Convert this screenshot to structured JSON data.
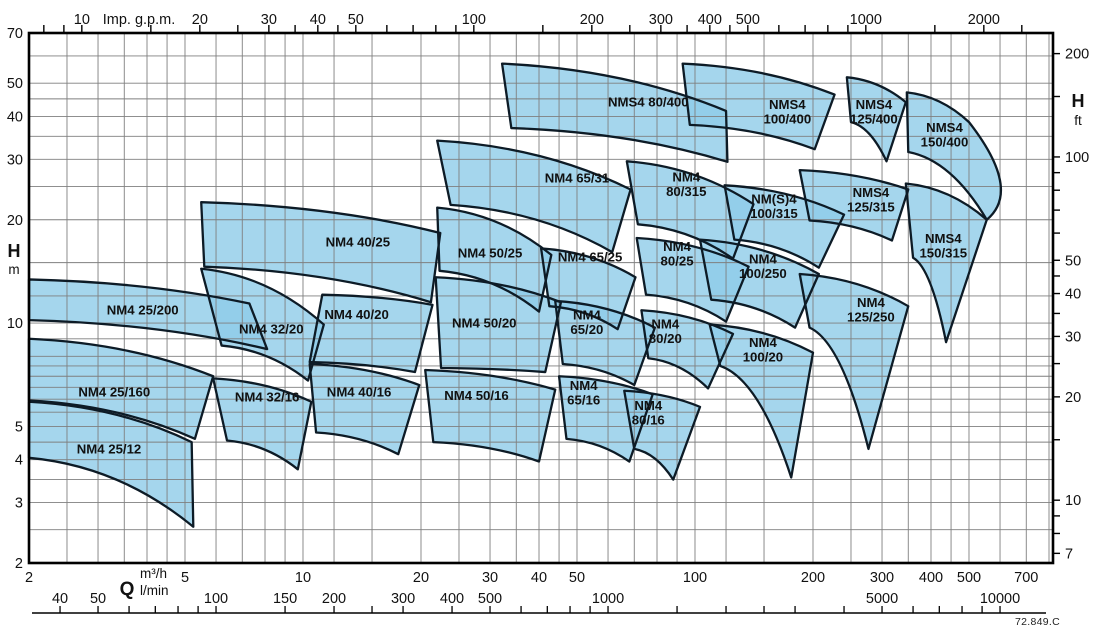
{
  "figure_code": "72.849.C",
  "colors": {
    "region_fill": "#8fcce9",
    "region_stroke": "#0d1b26",
    "grid": "#7f7f7f",
    "axis_border": "#000000",
    "text": "#111111",
    "background": "#ffffff"
  },
  "chart_data": {
    "type": "area",
    "description": "Pump range selection chart: coverage regions of pump models on log-log axes, head H versus flow Q",
    "x_range_m3h": [
      2,
      819
    ],
    "y_range_m": [
      2,
      70
    ],
    "grid": {
      "x_m3h": [
        2,
        2.5,
        3,
        3.5,
        4,
        4.5,
        5,
        6,
        7,
        8,
        9,
        10,
        12,
        15,
        20,
        25,
        30,
        35,
        40,
        45,
        50,
        60,
        70,
        80,
        90,
        100,
        120,
        150,
        200,
        250,
        300,
        350,
        400,
        450,
        500,
        600,
        700,
        800
      ],
      "y_m": [
        2,
        2.5,
        3,
        3.5,
        4,
        4.5,
        5,
        5.5,
        6,
        6.5,
        7,
        7.5,
        8,
        9,
        10,
        12,
        15,
        20,
        25,
        30,
        35,
        40,
        45,
        50,
        60,
        70
      ]
    },
    "axes": {
      "top": {
        "title": "Imp. g.p.m.",
        "labeled_ticks": [
          10,
          20,
          30,
          40,
          50,
          100,
          200,
          300,
          400,
          500,
          1000,
          2000
        ],
        "minor_ticks": [
          8,
          9,
          15,
          25,
          35,
          45,
          60,
          70,
          80,
          90,
          150,
          250,
          350,
          450,
          600,
          700,
          800,
          900,
          1500,
          2500
        ],
        "m3h_per_unit": 0.27276
      },
      "left": {
        "title": "H",
        "unit": "m",
        "labeled_ticks": [
          70,
          50,
          40,
          30,
          20,
          10,
          5,
          4,
          3,
          2
        ]
      },
      "right": {
        "title": "H",
        "unit": "ft",
        "labeled_ticks": [
          200,
          100,
          50,
          40,
          30,
          20,
          10,
          7
        ],
        "minor_ticks": [
          8,
          9,
          15,
          25,
          35,
          45,
          60,
          70,
          80,
          90,
          150
        ],
        "m_per_unit": 0.3048
      },
      "bottom_m3h": {
        "title": "Q",
        "unit": "m³/h",
        "labeled_ticks": [
          2,
          5,
          10,
          20,
          30,
          40,
          50,
          100,
          200,
          300,
          400,
          500,
          700
        ]
      },
      "bottom_lmin": {
        "unit": "l/min",
        "labeled_ticks": [
          40,
          50,
          100,
          150,
          200,
          300,
          400,
          500,
          1000,
          5000,
          10000
        ],
        "minor_ticks": [
          60,
          70,
          80,
          90,
          250,
          600,
          700,
          800,
          900,
          1500,
          2000,
          2500,
          3000,
          4000,
          6000,
          7000,
          8000,
          9000
        ],
        "m3h_per_unit": 0.06
      }
    },
    "regions": [
      {
        "name": "NM4 25/12",
        "lines": [
          "NM4 25/12"
        ],
        "label_at": [
          3.2,
          4.3
        ],
        "tl": [
          2,
          5.9
        ],
        "tr": [
          5.2,
          4.5
        ],
        "br": [
          5.25,
          2.55
        ],
        "bl": [
          2,
          4.05
        ]
      },
      {
        "name": "NM4 25/160",
        "lines": [
          "NM4 25/160"
        ],
        "label_at": [
          3.3,
          6.3
        ],
        "tl": [
          2,
          9.0
        ],
        "tr": [
          5.9,
          7.0
        ],
        "br": [
          5.3,
          4.6
        ],
        "bl": [
          2,
          5.95
        ]
      },
      {
        "name": "NM4 25/200",
        "lines": [
          "NM4 25/200"
        ],
        "label_at": [
          3.9,
          10.9
        ],
        "tl": [
          2,
          13.4
        ],
        "tr": [
          7.3,
          11.4
        ],
        "br": [
          8.1,
          8.4
        ],
        "bl": [
          2,
          10.2
        ]
      },
      {
        "name": "NM4 32/16",
        "lines": [
          "NM4 32/16"
        ],
        "label_at": [
          8.1,
          6.1
        ],
        "tl": [
          5.9,
          6.9
        ],
        "tr": [
          10.5,
          5.9
        ],
        "br": [
          9.7,
          3.75
        ],
        "bl": [
          6.4,
          4.55
        ]
      },
      {
        "name": "NM4 32/20",
        "lines": [
          "NM4 32/20"
        ],
        "label_at": [
          8.3,
          9.6
        ],
        "tl": [
          5.5,
          14.4
        ],
        "tr": [
          11.3,
          9.9
        ],
        "br": [
          10.3,
          6.8
        ],
        "bl": [
          6.2,
          8.6
        ]
      },
      {
        "name": "NM4 40/16",
        "lines": [
          "NM4 40/16"
        ],
        "label_at": [
          13.9,
          6.3
        ],
        "tl": [
          10.4,
          7.6
        ],
        "tr": [
          19.8,
          6.6
        ],
        "br": [
          17.5,
          4.15
        ],
        "bl": [
          10.8,
          4.8
        ]
      },
      {
        "name": "NM4 40/20",
        "lines": [
          "NM4 40/20"
        ],
        "label_at": [
          13.7,
          10.6
        ],
        "tl": [
          11.2,
          12.1
        ],
        "tr": [
          21.4,
          11.3
        ],
        "br": [
          19.3,
          7.2
        ],
        "bl": [
          10.4,
          7.7
        ]
      },
      {
        "name": "NM4 40/25",
        "lines": [
          "NM4 40/25"
        ],
        "label_at": [
          13.8,
          17.2
        ],
        "tl": [
          5.5,
          22.5
        ],
        "tr": [
          22.4,
          18.3
        ],
        "br": [
          21.2,
          11.5
        ],
        "bl": [
          5.6,
          14.6
        ]
      },
      {
        "name": "NM4 50/16",
        "lines": [
          "NM4 50/16"
        ],
        "label_at": [
          27.7,
          6.15
        ],
        "tl": [
          20.5,
          7.3
        ],
        "tr": [
          44,
          6.4
        ],
        "br": [
          40,
          3.95
        ],
        "bl": [
          21.5,
          4.5
        ]
      },
      {
        "name": "NM4 50/20",
        "lines": [
          "NM4 50/20"
        ],
        "label_at": [
          29,
          10.0
        ],
        "tl": [
          21.8,
          13.6
        ],
        "tr": [
          45.5,
          11.5
        ],
        "br": [
          41.5,
          7.2
        ],
        "bl": [
          22.5,
          7.4
        ]
      },
      {
        "name": "NM4 50/25",
        "lines": [
          "NM4 50/25"
        ],
        "label_at": [
          30,
          16.0
        ],
        "tl": [
          22,
          21.7
        ],
        "tr": [
          43,
          15.8
        ],
        "br": [
          40,
          10.8
        ],
        "bl": [
          22.3,
          14.2
        ]
      },
      {
        "name": "NM4 65/16",
        "lines": [
          "NM4",
          "65/16"
        ],
        "label_at": [
          52,
          6.3
        ],
        "tl": [
          45,
          7.0
        ],
        "tr": [
          78,
          6.2
        ],
        "br": [
          68,
          3.95
        ],
        "bl": [
          47,
          4.6
        ]
      },
      {
        "name": "NM4 65/20",
        "lines": [
          "NM4",
          "65/20"
        ],
        "label_at": [
          53,
          10.1
        ],
        "tl": [
          44,
          11.6
        ],
        "tr": [
          79,
          9.7
        ],
        "br": [
          70,
          6.6
        ],
        "bl": [
          46,
          7.6
        ]
      },
      {
        "name": "NM4 65/25",
        "lines": [
          "NM4 65/25"
        ],
        "label_at": [
          54,
          15.6
        ],
        "tl": [
          40.5,
          16.5
        ],
        "tr": [
          70.5,
          13.6
        ],
        "br": [
          63.5,
          9.6
        ],
        "bl": [
          42.5,
          11.2
        ]
      },
      {
        "name": "NM4 65/31",
        "lines": [
          "NM4 65/31"
        ],
        "label_at": [
          50,
          26.5
        ],
        "tl": [
          22,
          34
        ],
        "tr": [
          68.5,
          24.5
        ],
        "br": [
          61.5,
          16.1
        ],
        "bl": [
          23.8,
          22.1
        ]
      },
      {
        "name": "NM4 80/16",
        "lines": [
          "NM4",
          "80/16"
        ],
        "label_at": [
          76,
          5.5
        ],
        "tl": [
          66,
          6.35
        ],
        "tr": [
          103,
          5.7
        ],
        "br": [
          88,
          3.5
        ],
        "bl": [
          70,
          4.3
        ]
      },
      {
        "name": "NM4 80/20",
        "lines": [
          "NM4",
          "80/20"
        ],
        "label_at": [
          84,
          9.5
        ],
        "tl": [
          73,
          10.9
        ],
        "tr": [
          125,
          9.3
        ],
        "br": [
          108,
          6.45
        ],
        "bl": [
          76,
          7.9
        ]
      },
      {
        "name": "NM4 80/25",
        "lines": [
          "NM4",
          "80/25"
        ],
        "label_at": [
          90,
          16.0
        ],
        "tl": [
          71,
          17.7
        ],
        "tr": [
          137,
          14.6
        ],
        "br": [
          120,
          10.1
        ],
        "bl": [
          75,
          12.1
        ]
      },
      {
        "name": "NM4 80/315",
        "lines": [
          "NM4",
          "80/315"
        ],
        "label_at": [
          95,
          25.5
        ],
        "tl": [
          67,
          29.6
        ],
        "tr": [
          141,
          22.2
        ],
        "br": [
          125,
          15.4
        ],
        "bl": [
          71.5,
          19.4
        ]
      },
      {
        "name": "NMS4 80/400",
        "lines": [
          "NMS4 80/400"
        ],
        "label_at": [
          76,
          44
        ],
        "tl": [
          32.2,
          57
        ],
        "tr": [
          120,
          41.5
        ],
        "br": [
          121,
          29.5
        ],
        "bl": [
          34,
          37
        ]
      },
      {
        "name": "NM4 100/20",
        "lines": [
          "NM4",
          "100/20"
        ],
        "label_at": [
          149,
          8.4
        ],
        "tl": [
          109,
          9.9
        ],
        "tr": [
          200,
          8.2
        ],
        "br": [
          176,
          3.55
        ],
        "bl": [
          116,
          7.5
        ]
      },
      {
        "name": "NM4 100/250",
        "lines": [
          "NM4",
          "100/250"
        ],
        "label_at": [
          149,
          14.7
        ],
        "tl": [
          103,
          17.5
        ],
        "tr": [
          207,
          13.9
        ],
        "br": [
          180,
          9.7
        ],
        "bl": [
          110,
          11.7
        ]
      },
      {
        "name": "NM(S)4 100/315",
        "lines": [
          "NM(S)4",
          "100/315"
        ],
        "label_at": [
          159,
          22
        ],
        "tl": [
          119,
          25.2
        ],
        "tr": [
          240,
          20.7
        ],
        "br": [
          207,
          14.5
        ],
        "bl": [
          126,
          17.5
        ]
      },
      {
        "name": "NMS4 100/400",
        "lines": [
          "NMS4",
          "100/400"
        ],
        "label_at": [
          172,
          41.5
        ],
        "tl": [
          93,
          57
        ],
        "tr": [
          227,
          46.3
        ],
        "br": [
          202,
          32.1
        ],
        "bl": [
          97,
          37.8
        ]
      },
      {
        "name": "NM4 125/250",
        "lines": [
          "NM4",
          "125/250"
        ],
        "label_at": [
          281,
          11.0
        ],
        "tl": [
          185,
          13.9
        ],
        "tr": [
          350,
          11.2
        ],
        "br": [
          277,
          4.3
        ],
        "bl": [
          196,
          9.7
        ]
      },
      {
        "name": "NMS4 125/315",
        "lines": [
          "NMS4",
          "125/315"
        ],
        "label_at": [
          281,
          23
        ],
        "tl": [
          185,
          27.9
        ],
        "tr": [
          350,
          24.5
        ],
        "br": [
          318,
          17.4
        ],
        "bl": [
          196,
          19.9
        ]
      },
      {
        "name": "NMS4 125/400",
        "lines": [
          "NMS4",
          "125/400"
        ],
        "label_at": [
          286,
          41.5
        ],
        "tl": [
          244,
          52
        ],
        "tr": [
          345,
          44
        ],
        "br": [
          308,
          29.6
        ],
        "bl": [
          250,
          38.5
        ]
      },
      {
        "name": "NMS4 150/315",
        "lines": [
          "NMS4",
          "150/315"
        ],
        "label_at": [
          430,
          16.9
        ],
        "tl": [
          345,
          25.5
        ],
        "tr": [
          555,
          20
        ],
        "br": [
          437,
          8.8
        ],
        "bl": [
          360,
          15.5
        ]
      },
      {
        "name": "NMS4 150/400",
        "lines": [
          "NMS4",
          "150/400"
        ],
        "label_at": [
          433,
          35.5
        ],
        "tl": [
          347,
          47
        ],
        "tr": [
          500,
          38.5
        ],
        "br": [
          555,
          20
        ],
        "bl": [
          350,
          31.5
        ],
        "rmid": [
          600,
          26
        ]
      }
    ]
  }
}
